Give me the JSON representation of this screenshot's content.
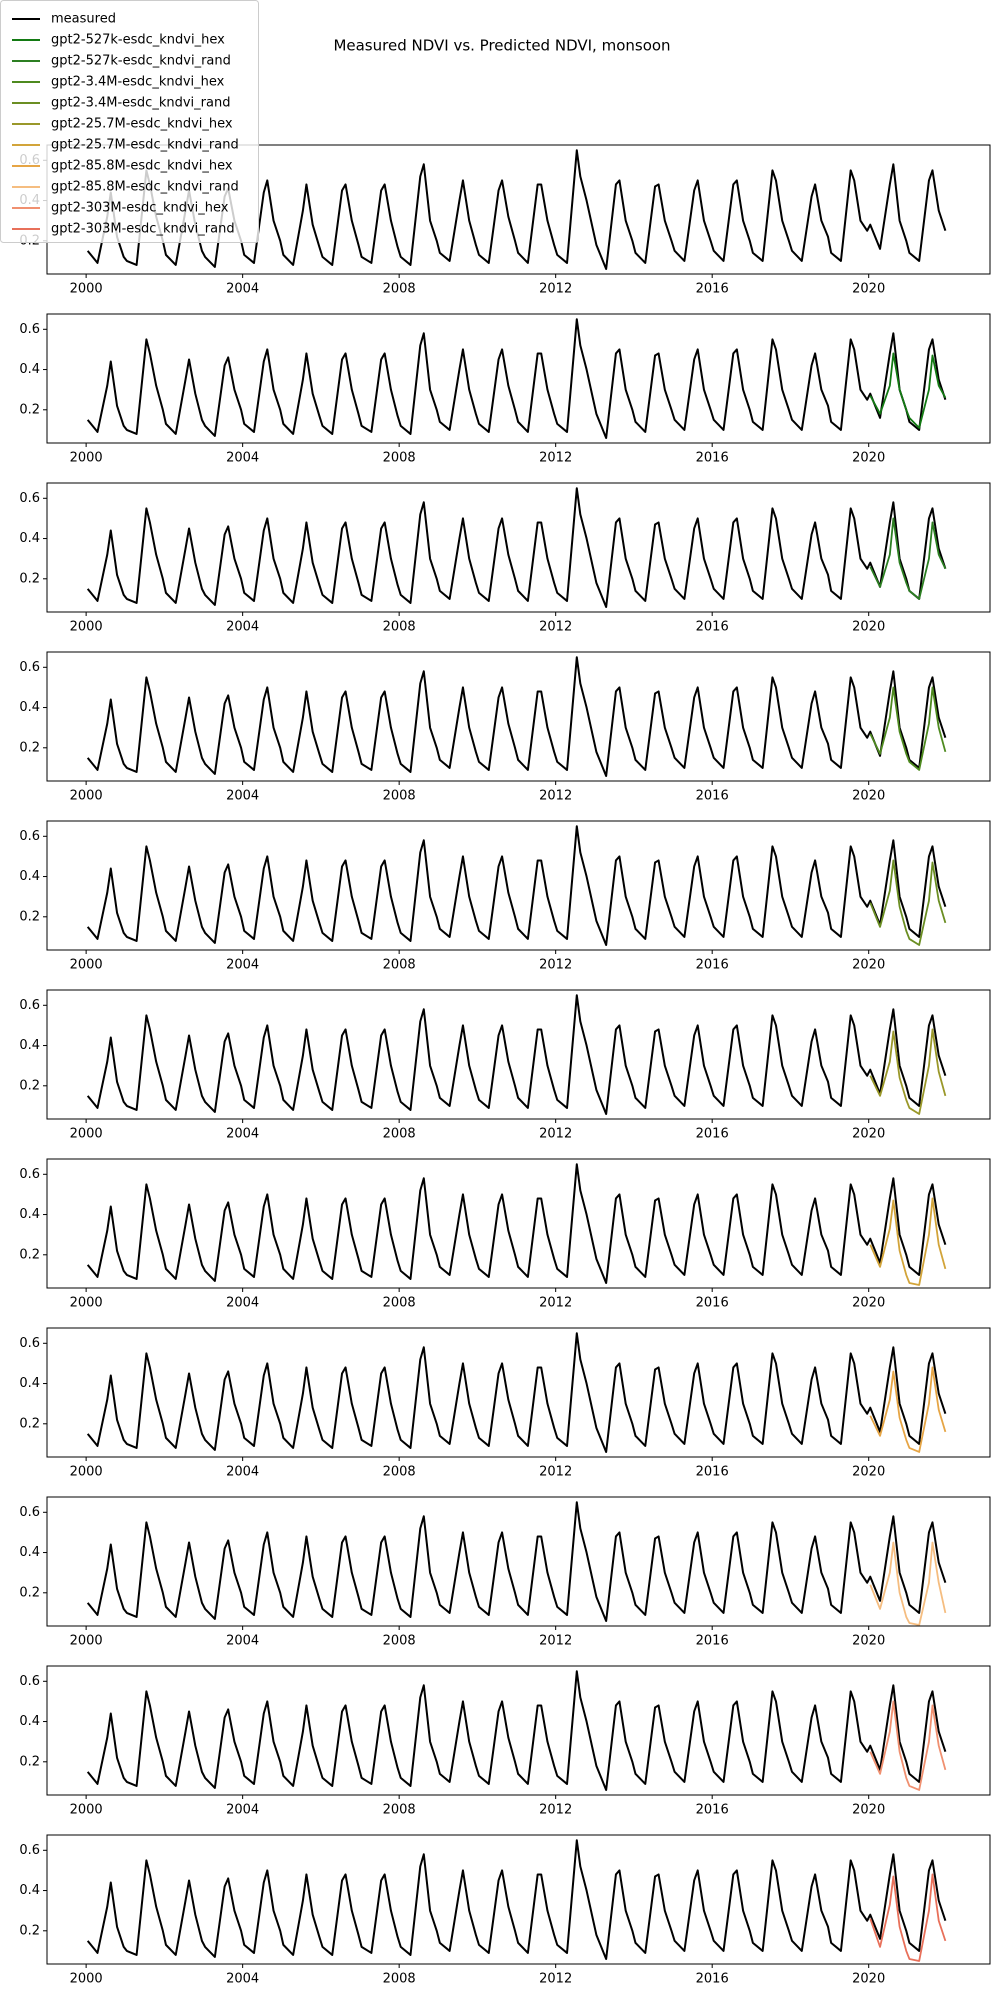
{
  "chart_data": {
    "type": "line",
    "title": "Measured NDVI vs. Predicted NDVI, monsoon",
    "x": [
      2000.04,
      2000.29,
      2000.54,
      2000.63,
      2000.79,
      2000.96,
      2001.04,
      2001.29,
      2001.54,
      2001.63,
      2001.79,
      2001.96,
      2002.04,
      2002.29,
      2002.54,
      2002.63,
      2002.79,
      2002.96,
      2003.04,
      2003.29,
      2003.54,
      2003.63,
      2003.79,
      2003.96,
      2004.04,
      2004.29,
      2004.54,
      2004.63,
      2004.79,
      2004.96,
      2005.04,
      2005.29,
      2005.54,
      2005.63,
      2005.79,
      2005.96,
      2006.04,
      2006.29,
      2006.54,
      2006.63,
      2006.79,
      2006.96,
      2007.04,
      2007.29,
      2007.54,
      2007.63,
      2007.79,
      2007.96,
      2008.04,
      2008.29,
      2008.54,
      2008.63,
      2008.79,
      2008.96,
      2009.04,
      2009.29,
      2009.54,
      2009.63,
      2009.79,
      2009.96,
      2010.04,
      2010.29,
      2010.54,
      2010.63,
      2010.79,
      2010.96,
      2011.04,
      2011.29,
      2011.54,
      2011.63,
      2011.79,
      2011.96,
      2012.04,
      2012.29,
      2012.54,
      2012.63,
      2012.79,
      2012.96,
      2013.04,
      2013.29,
      2013.54,
      2013.63,
      2013.79,
      2013.96,
      2014.04,
      2014.29,
      2014.54,
      2014.63,
      2014.79,
      2014.96,
      2015.04,
      2015.29,
      2015.54,
      2015.63,
      2015.79,
      2015.96,
      2016.04,
      2016.29,
      2016.54,
      2016.63,
      2016.79,
      2016.96,
      2017.04,
      2017.29,
      2017.54,
      2017.63,
      2017.79,
      2017.96,
      2018.04,
      2018.29,
      2018.54,
      2018.63,
      2018.79,
      2018.96,
      2019.04,
      2019.29,
      2019.54,
      2019.63,
      2019.79,
      2019.96,
      2020.04,
      2020.29,
      2020.54,
      2020.63,
      2020.79,
      2020.96,
      2021.04,
      2021.29,
      2021.54,
      2021.63,
      2021.79,
      2021.96
    ],
    "series": [
      {
        "name": "measured",
        "color": "#000000",
        "values": [
          0.15,
          0.09,
          0.32,
          0.44,
          0.22,
          0.12,
          0.1,
          0.08,
          0.55,
          0.48,
          0.32,
          0.2,
          0.13,
          0.08,
          0.35,
          0.45,
          0.28,
          0.15,
          0.12,
          0.07,
          0.42,
          0.46,
          0.3,
          0.2,
          0.13,
          0.09,
          0.44,
          0.5,
          0.3,
          0.2,
          0.13,
          0.08,
          0.35,
          0.48,
          0.28,
          0.17,
          0.12,
          0.08,
          0.45,
          0.48,
          0.3,
          0.18,
          0.12,
          0.09,
          0.45,
          0.48,
          0.3,
          0.17,
          0.12,
          0.08,
          0.52,
          0.58,
          0.3,
          0.2,
          0.14,
          0.1,
          0.4,
          0.5,
          0.3,
          0.18,
          0.13,
          0.09,
          0.45,
          0.5,
          0.32,
          0.2,
          0.14,
          0.09,
          0.48,
          0.48,
          0.3,
          0.18,
          0.13,
          0.09,
          0.65,
          0.52,
          0.4,
          0.25,
          0.18,
          0.06,
          0.48,
          0.5,
          0.3,
          0.2,
          0.14,
          0.09,
          0.47,
          0.48,
          0.3,
          0.2,
          0.15,
          0.1,
          0.45,
          0.5,
          0.3,
          0.2,
          0.15,
          0.1,
          0.48,
          0.5,
          0.3,
          0.2,
          0.14,
          0.1,
          0.55,
          0.5,
          0.3,
          0.2,
          0.15,
          0.1,
          0.42,
          0.48,
          0.3,
          0.22,
          0.14,
          0.1,
          0.55,
          0.5,
          0.3,
          0.25,
          0.28,
          0.16,
          0.48,
          0.58,
          0.3,
          0.2,
          0.14,
          0.1,
          0.5,
          0.55,
          0.35,
          0.25
        ]
      },
      {
        "name": "gpt2-527k-esdc_kndvi_hex",
        "color": "#137a13",
        "x": [
          2020.04,
          2020.29,
          2020.54,
          2020.63,
          2020.79,
          2020.96,
          2021.04,
          2021.29,
          2021.54,
          2021.63,
          2021.79,
          2021.96
        ],
        "values": [
          0.27,
          0.18,
          0.32,
          0.48,
          0.3,
          0.2,
          0.16,
          0.11,
          0.3,
          0.47,
          0.32,
          0.26
        ]
      },
      {
        "name": "gpt2-527k-esdc_kndvi_rand",
        "color": "#2c7f22",
        "x": [
          2020.04,
          2020.29,
          2020.54,
          2020.63,
          2020.79,
          2020.96,
          2021.04,
          2021.29,
          2021.54,
          2021.63,
          2021.79,
          2021.96
        ],
        "values": [
          0.26,
          0.16,
          0.32,
          0.5,
          0.28,
          0.18,
          0.14,
          0.1,
          0.3,
          0.48,
          0.32,
          0.25
        ]
      },
      {
        "name": "gpt2-3.4M-esdc_kndvi_hex",
        "color": "#4e8a1f",
        "x": [
          2020.04,
          2020.29,
          2020.54,
          2020.63,
          2020.79,
          2020.96,
          2021.04,
          2021.29,
          2021.54,
          2021.63,
          2021.79,
          2021.96
        ],
        "values": [
          0.27,
          0.17,
          0.35,
          0.5,
          0.28,
          0.17,
          0.13,
          0.09,
          0.32,
          0.5,
          0.3,
          0.18
        ]
      },
      {
        "name": "gpt2-3.4M-esdc_kndvi_rand",
        "color": "#6b8e23",
        "x": [
          2020.04,
          2020.29,
          2020.54,
          2020.63,
          2020.79,
          2020.96,
          2021.04,
          2021.29,
          2021.54,
          2021.63,
          2021.79,
          2021.96
        ],
        "values": [
          0.27,
          0.15,
          0.33,
          0.48,
          0.25,
          0.13,
          0.09,
          0.06,
          0.28,
          0.47,
          0.28,
          0.17
        ]
      },
      {
        "name": "gpt2-25.7M-esdc_kndvi_hex",
        "color": "#9a982a",
        "x": [
          2020.04,
          2020.29,
          2020.54,
          2020.63,
          2020.79,
          2020.96,
          2021.04,
          2021.29,
          2021.54,
          2021.63,
          2021.79,
          2021.96
        ],
        "values": [
          0.25,
          0.15,
          0.32,
          0.47,
          0.24,
          0.13,
          0.09,
          0.06,
          0.3,
          0.48,
          0.27,
          0.15
        ]
      },
      {
        "name": "gpt2-25.7M-esdc_kndvi_rand",
        "color": "#d2a43a",
        "x": [
          2020.04,
          2020.29,
          2020.54,
          2020.63,
          2020.79,
          2020.96,
          2021.04,
          2021.29,
          2021.54,
          2021.63,
          2021.79,
          2021.96
        ],
        "values": [
          0.25,
          0.14,
          0.33,
          0.47,
          0.22,
          0.1,
          0.06,
          0.05,
          0.3,
          0.48,
          0.25,
          0.13
        ]
      },
      {
        "name": "gpt2-85.8M-esdc_kndvi_hex",
        "color": "#e6a545",
        "x": [
          2020.04,
          2020.29,
          2020.54,
          2020.63,
          2020.79,
          2020.96,
          2021.04,
          2021.29,
          2021.54,
          2021.63,
          2021.79,
          2021.96
        ],
        "values": [
          0.24,
          0.14,
          0.32,
          0.46,
          0.23,
          0.12,
          0.08,
          0.06,
          0.3,
          0.48,
          0.27,
          0.16
        ]
      },
      {
        "name": "gpt2-85.8M-esdc_kndvi_rand",
        "color": "#f5bd80",
        "x": [
          2020.04,
          2020.29,
          2020.54,
          2020.63,
          2020.79,
          2020.96,
          2021.04,
          2021.29,
          2021.54,
          2021.63,
          2021.79,
          2021.96
        ],
        "values": [
          0.24,
          0.12,
          0.3,
          0.45,
          0.2,
          0.08,
          0.05,
          0.04,
          0.25,
          0.45,
          0.25,
          0.1
        ]
      },
      {
        "name": "gpt2-303M-esdc_kndvi_hex",
        "color": "#f09070",
        "x": [
          2020.04,
          2020.29,
          2020.54,
          2020.63,
          2020.79,
          2020.96,
          2021.04,
          2021.29,
          2021.54,
          2021.63,
          2021.79,
          2021.96
        ],
        "values": [
          0.25,
          0.14,
          0.35,
          0.5,
          0.25,
          0.12,
          0.08,
          0.06,
          0.3,
          0.48,
          0.28,
          0.16
        ]
      },
      {
        "name": "gpt2-303M-esdc_kndvi_rand",
        "color": "#e8705a",
        "x": [
          2020.04,
          2020.29,
          2020.54,
          2020.63,
          2020.79,
          2020.96,
          2021.04,
          2021.29,
          2021.54,
          2021.63,
          2021.79,
          2021.96
        ],
        "values": [
          0.26,
          0.12,
          0.33,
          0.47,
          0.22,
          0.1,
          0.06,
          0.05,
          0.3,
          0.48,
          0.25,
          0.15
        ]
      }
    ],
    "xlim": [
      1999.0,
      2023.1
    ],
    "xticks": [
      2000,
      2004,
      2008,
      2012,
      2016,
      2020
    ],
    "ylim": [
      0.035,
      0.676
    ],
    "yticks": [
      0.2,
      0.4,
      0.6
    ],
    "legend": "upper left"
  }
}
